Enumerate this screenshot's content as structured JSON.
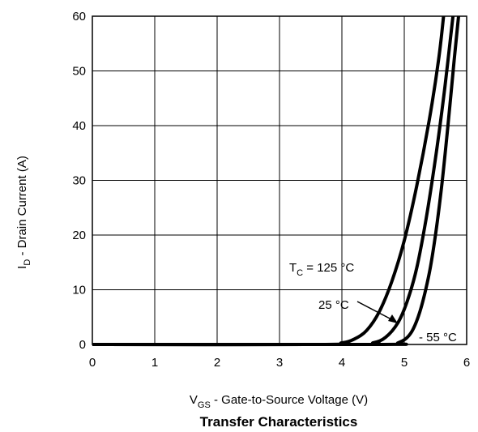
{
  "chart_data": {
    "type": "line",
    "title": "Transfer Characteristics",
    "xlabel": {
      "main": "V",
      "sub": "GS",
      "rest": " -   Gate-to-Source Voltage (V)"
    },
    "ylabel": {
      "main": "I",
      "sub": "D",
      "rest": " -   Drain Current (A)"
    },
    "xlim": [
      0,
      6
    ],
    "ylim": [
      0,
      60
    ],
    "xticks": [
      "0",
      "1",
      "2",
      "3",
      "4",
      "5",
      "6"
    ],
    "yticks": [
      "0",
      "10",
      "20",
      "30",
      "40",
      "50",
      "60"
    ],
    "grid": true,
    "series": [
      {
        "name": "TC = 125 °C",
        "x": [
          0,
          3.6,
          4.0,
          4.2,
          4.4,
          4.6,
          4.8,
          5.0,
          5.2,
          5.4,
          5.55,
          5.63
        ],
        "y": [
          0,
          0,
          0.3,
          1.0,
          2.6,
          6.0,
          11.5,
          19.0,
          29.0,
          41.0,
          52.0,
          60.0
        ]
      },
      {
        "name": "25 °C",
        "x": [
          0,
          4.2,
          4.5,
          4.7,
          4.9,
          5.05,
          5.2,
          5.35,
          5.5,
          5.65,
          5.78
        ],
        "y": [
          0,
          0,
          0.3,
          1.3,
          4.0,
          8.0,
          14.0,
          23.0,
          34.0,
          47.0,
          60.0
        ]
      },
      {
        "name": "- 55 °C",
        "x": [
          0,
          4.6,
          4.9,
          5.1,
          5.25,
          5.4,
          5.5,
          5.6,
          5.7,
          5.8,
          5.87
        ],
        "y": [
          0,
          0,
          0.3,
          2.0,
          6.0,
          13.0,
          20.0,
          29.0,
          40.0,
          52.0,
          60.0
        ]
      }
    ],
    "annotations": [
      {
        "label": {
          "main": "T",
          "sub": "C",
          "rest": " = 125 °C"
        }
      },
      {
        "label": {
          "main": "25 °C",
          "sub": "",
          "rest": ""
        }
      },
      {
        "label": {
          "main": "- 55 °C",
          "sub": "",
          "rest": ""
        }
      }
    ]
  }
}
